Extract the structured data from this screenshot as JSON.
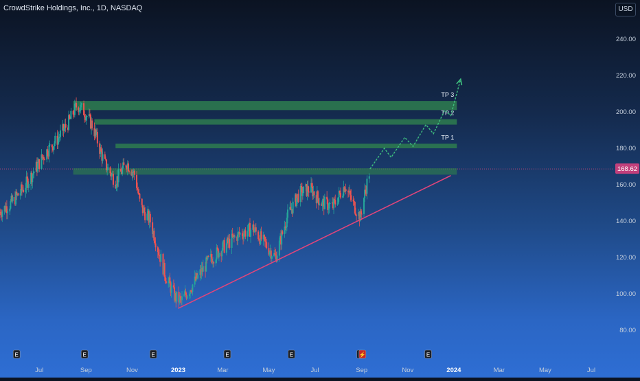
{
  "header": {
    "title": "CrowdStrike Holdings, Inc., 1D, NASDAQ",
    "currency": "USD"
  },
  "price_axis": {
    "ticks": [
      "240.00",
      "220.00",
      "200.00",
      "180.00",
      "160.00",
      "140.00",
      "120.00",
      "100.00",
      "80.00"
    ],
    "current_price_label": "168.62",
    "current_price_color": "#c2407c"
  },
  "time_axis": {
    "ticks": [
      "Jul",
      "Sep",
      "Nov",
      "2023",
      "Mar",
      "May",
      "Jul",
      "Sep",
      "Nov",
      "2024",
      "Mar",
      "May",
      "Jul"
    ]
  },
  "targets": [
    {
      "label": "TP 1"
    },
    {
      "label": "TP 2"
    },
    {
      "label": "TP 3"
    }
  ],
  "colors": {
    "up": "#26a69a",
    "down": "#ef5350",
    "zone": "#2e7d4f",
    "trendline": "#e0457b",
    "projection": "#3fbf7f"
  },
  "chart_data": {
    "type": "candlestick",
    "title": "CrowdStrike Holdings, Inc., 1D, NASDAQ",
    "currency": "USD",
    "ylim": [
      75,
      250
    ],
    "x_range": [
      "2022-05-10",
      "2024-07-31"
    ],
    "close_series": [
      {
        "date": "2022-05-10",
        "close": 145
      },
      {
        "date": "2022-05-25",
        "close": 150
      },
      {
        "date": "2022-06-10",
        "close": 158
      },
      {
        "date": "2022-06-25",
        "close": 168
      },
      {
        "date": "2022-07-10",
        "close": 178
      },
      {
        "date": "2022-07-25",
        "close": 185
      },
      {
        "date": "2022-08-10",
        "close": 195
      },
      {
        "date": "2022-08-20",
        "close": 204
      },
      {
        "date": "2022-08-30",
        "close": 200
      },
      {
        "date": "2022-09-10",
        "close": 192
      },
      {
        "date": "2022-09-25",
        "close": 172
      },
      {
        "date": "2022-10-10",
        "close": 162
      },
      {
        "date": "2022-10-25",
        "close": 172
      },
      {
        "date": "2022-11-05",
        "close": 165
      },
      {
        "date": "2022-11-12",
        "close": 148
      },
      {
        "date": "2022-11-25",
        "close": 140
      },
      {
        "date": "2022-12-05",
        "close": 125
      },
      {
        "date": "2022-12-15",
        "close": 110
      },
      {
        "date": "2022-12-28",
        "close": 98
      },
      {
        "date": "2023-01-05",
        "close": 96
      },
      {
        "date": "2023-01-25",
        "close": 108
      },
      {
        "date": "2023-02-10",
        "close": 118
      },
      {
        "date": "2023-02-28",
        "close": 125
      },
      {
        "date": "2023-03-20",
        "close": 132
      },
      {
        "date": "2023-04-10",
        "close": 136
      },
      {
        "date": "2023-04-25",
        "close": 128
      },
      {
        "date": "2023-05-10",
        "close": 120
      },
      {
        "date": "2023-05-25",
        "close": 142
      },
      {
        "date": "2023-06-10",
        "close": 155
      },
      {
        "date": "2023-06-25",
        "close": 158
      },
      {
        "date": "2023-07-10",
        "close": 150
      },
      {
        "date": "2023-07-25",
        "close": 148
      },
      {
        "date": "2023-08-10",
        "close": 160
      },
      {
        "date": "2023-08-20",
        "close": 150
      },
      {
        "date": "2023-08-30",
        "close": 142
      },
      {
        "date": "2023-09-05",
        "close": 155
      },
      {
        "date": "2023-09-12",
        "close": 168.62
      }
    ],
    "zones": [
      {
        "from": "2022-08-15",
        "to": "2024-01-05",
        "low": 165.5,
        "high": 169
      },
      {
        "from": "2022-10-10",
        "to": "2024-01-05",
        "low": 180,
        "high": 182.5,
        "label": "TP 1"
      },
      {
        "from": "2022-09-12",
        "to": "2024-01-05",
        "low": 193,
        "high": 196,
        "label": "TP 2"
      },
      {
        "from": "2022-08-15",
        "to": "2024-01-05",
        "low": 201,
        "high": 206,
        "label": "TP 3"
      }
    ],
    "trendline": [
      {
        "date": "2023-01-01",
        "price": 92
      },
      {
        "date": "2023-12-28",
        "price": 165
      }
    ],
    "projection": [
      {
        "date": "2023-09-12",
        "price": 168.62
      },
      {
        "date": "2023-10-01",
        "price": 180
      },
      {
        "date": "2023-10-10",
        "price": 175
      },
      {
        "date": "2023-10-28",
        "price": 186
      },
      {
        "date": "2023-11-08",
        "price": 181
      },
      {
        "date": "2023-11-25",
        "price": 193
      },
      {
        "date": "2023-12-05",
        "price": 188
      },
      {
        "date": "2023-12-20",
        "price": 201
      },
      {
        "date": "2023-12-28",
        "price": 198
      },
      {
        "date": "2024-01-10",
        "price": 218
      }
    ],
    "current_price": 168.62
  },
  "event_markers": [
    {
      "date": "2022-06-01",
      "glyph": "E"
    },
    {
      "date": "2022-08-30",
      "glyph": "E"
    },
    {
      "date": "2022-11-29",
      "glyph": "E"
    },
    {
      "date": "2023-03-07",
      "glyph": "E"
    },
    {
      "date": "2023-05-31",
      "glyph": "E"
    },
    {
      "date": "2023-08-30",
      "glyph": "E"
    },
    {
      "date": "2023-09-02",
      "glyph": "⚡"
    },
    {
      "date": "2023-11-28",
      "glyph": "E"
    }
  ]
}
